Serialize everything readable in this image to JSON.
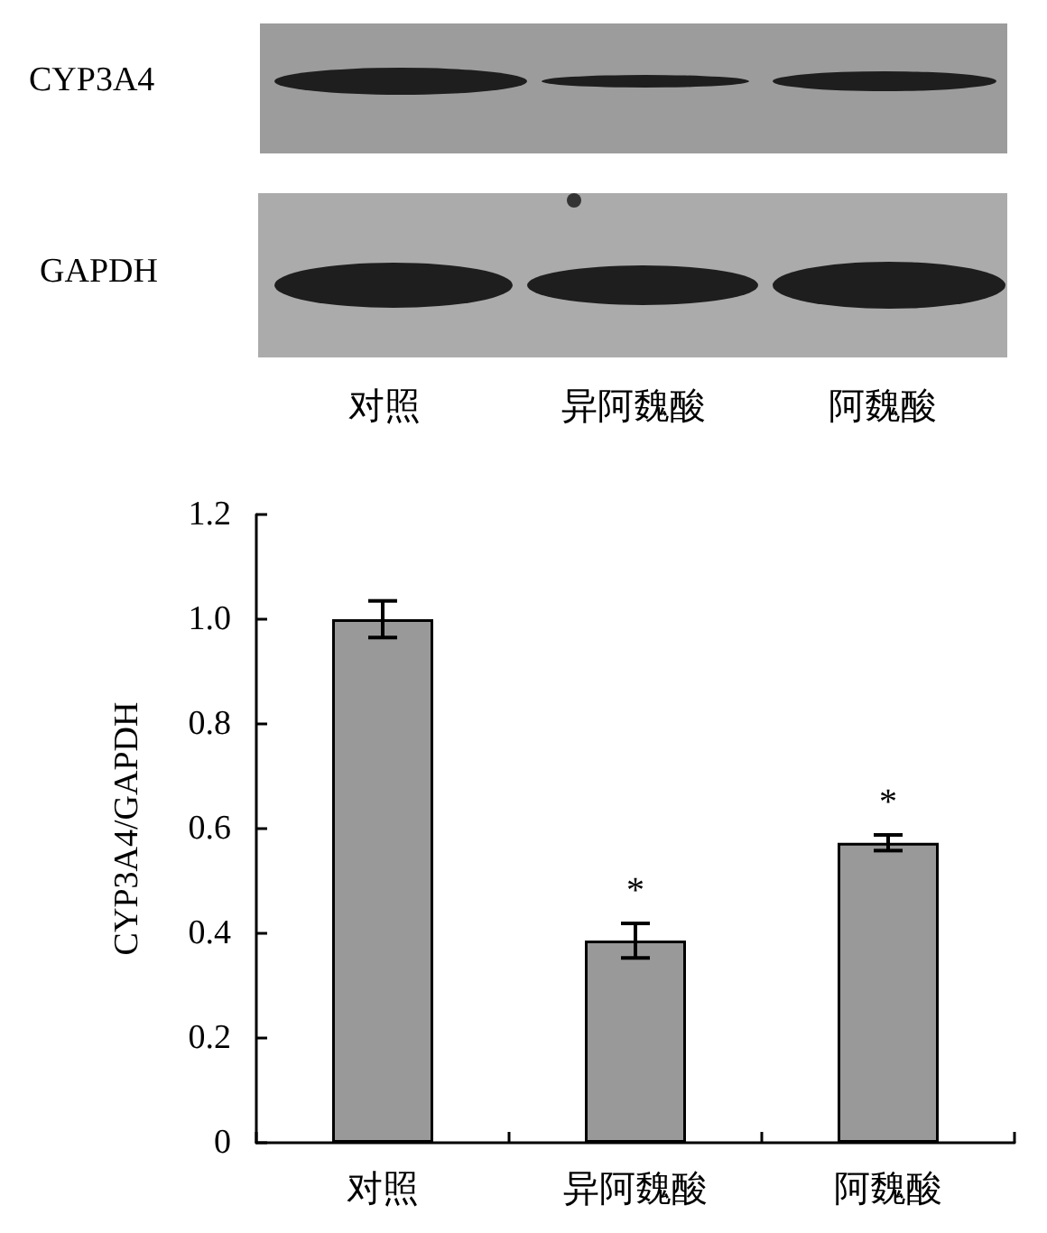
{
  "chart_data": {
    "type": "bar",
    "categories": [
      "对照",
      "异阿魏酸",
      "阿魏酸"
    ],
    "values": [
      1.0,
      0.386,
      0.573
    ],
    "color": "#999999",
    "errors": [
      0.035,
      0.033,
      0.015
    ],
    "value_labels": [
      null,
      "*",
      "*"
    ],
    "ylabel": "CYP3A4/GAPDH",
    "ylim": [
      0,
      1.2
    ],
    "yticks": [
      0,
      0.2,
      0.4,
      0.6,
      0.8,
      {
        "value": 1,
        "label": "1.0"
      },
      1.2
    ],
    "annotations": [
      "CYP3A4",
      "GAPDH"
    ]
  }
}
